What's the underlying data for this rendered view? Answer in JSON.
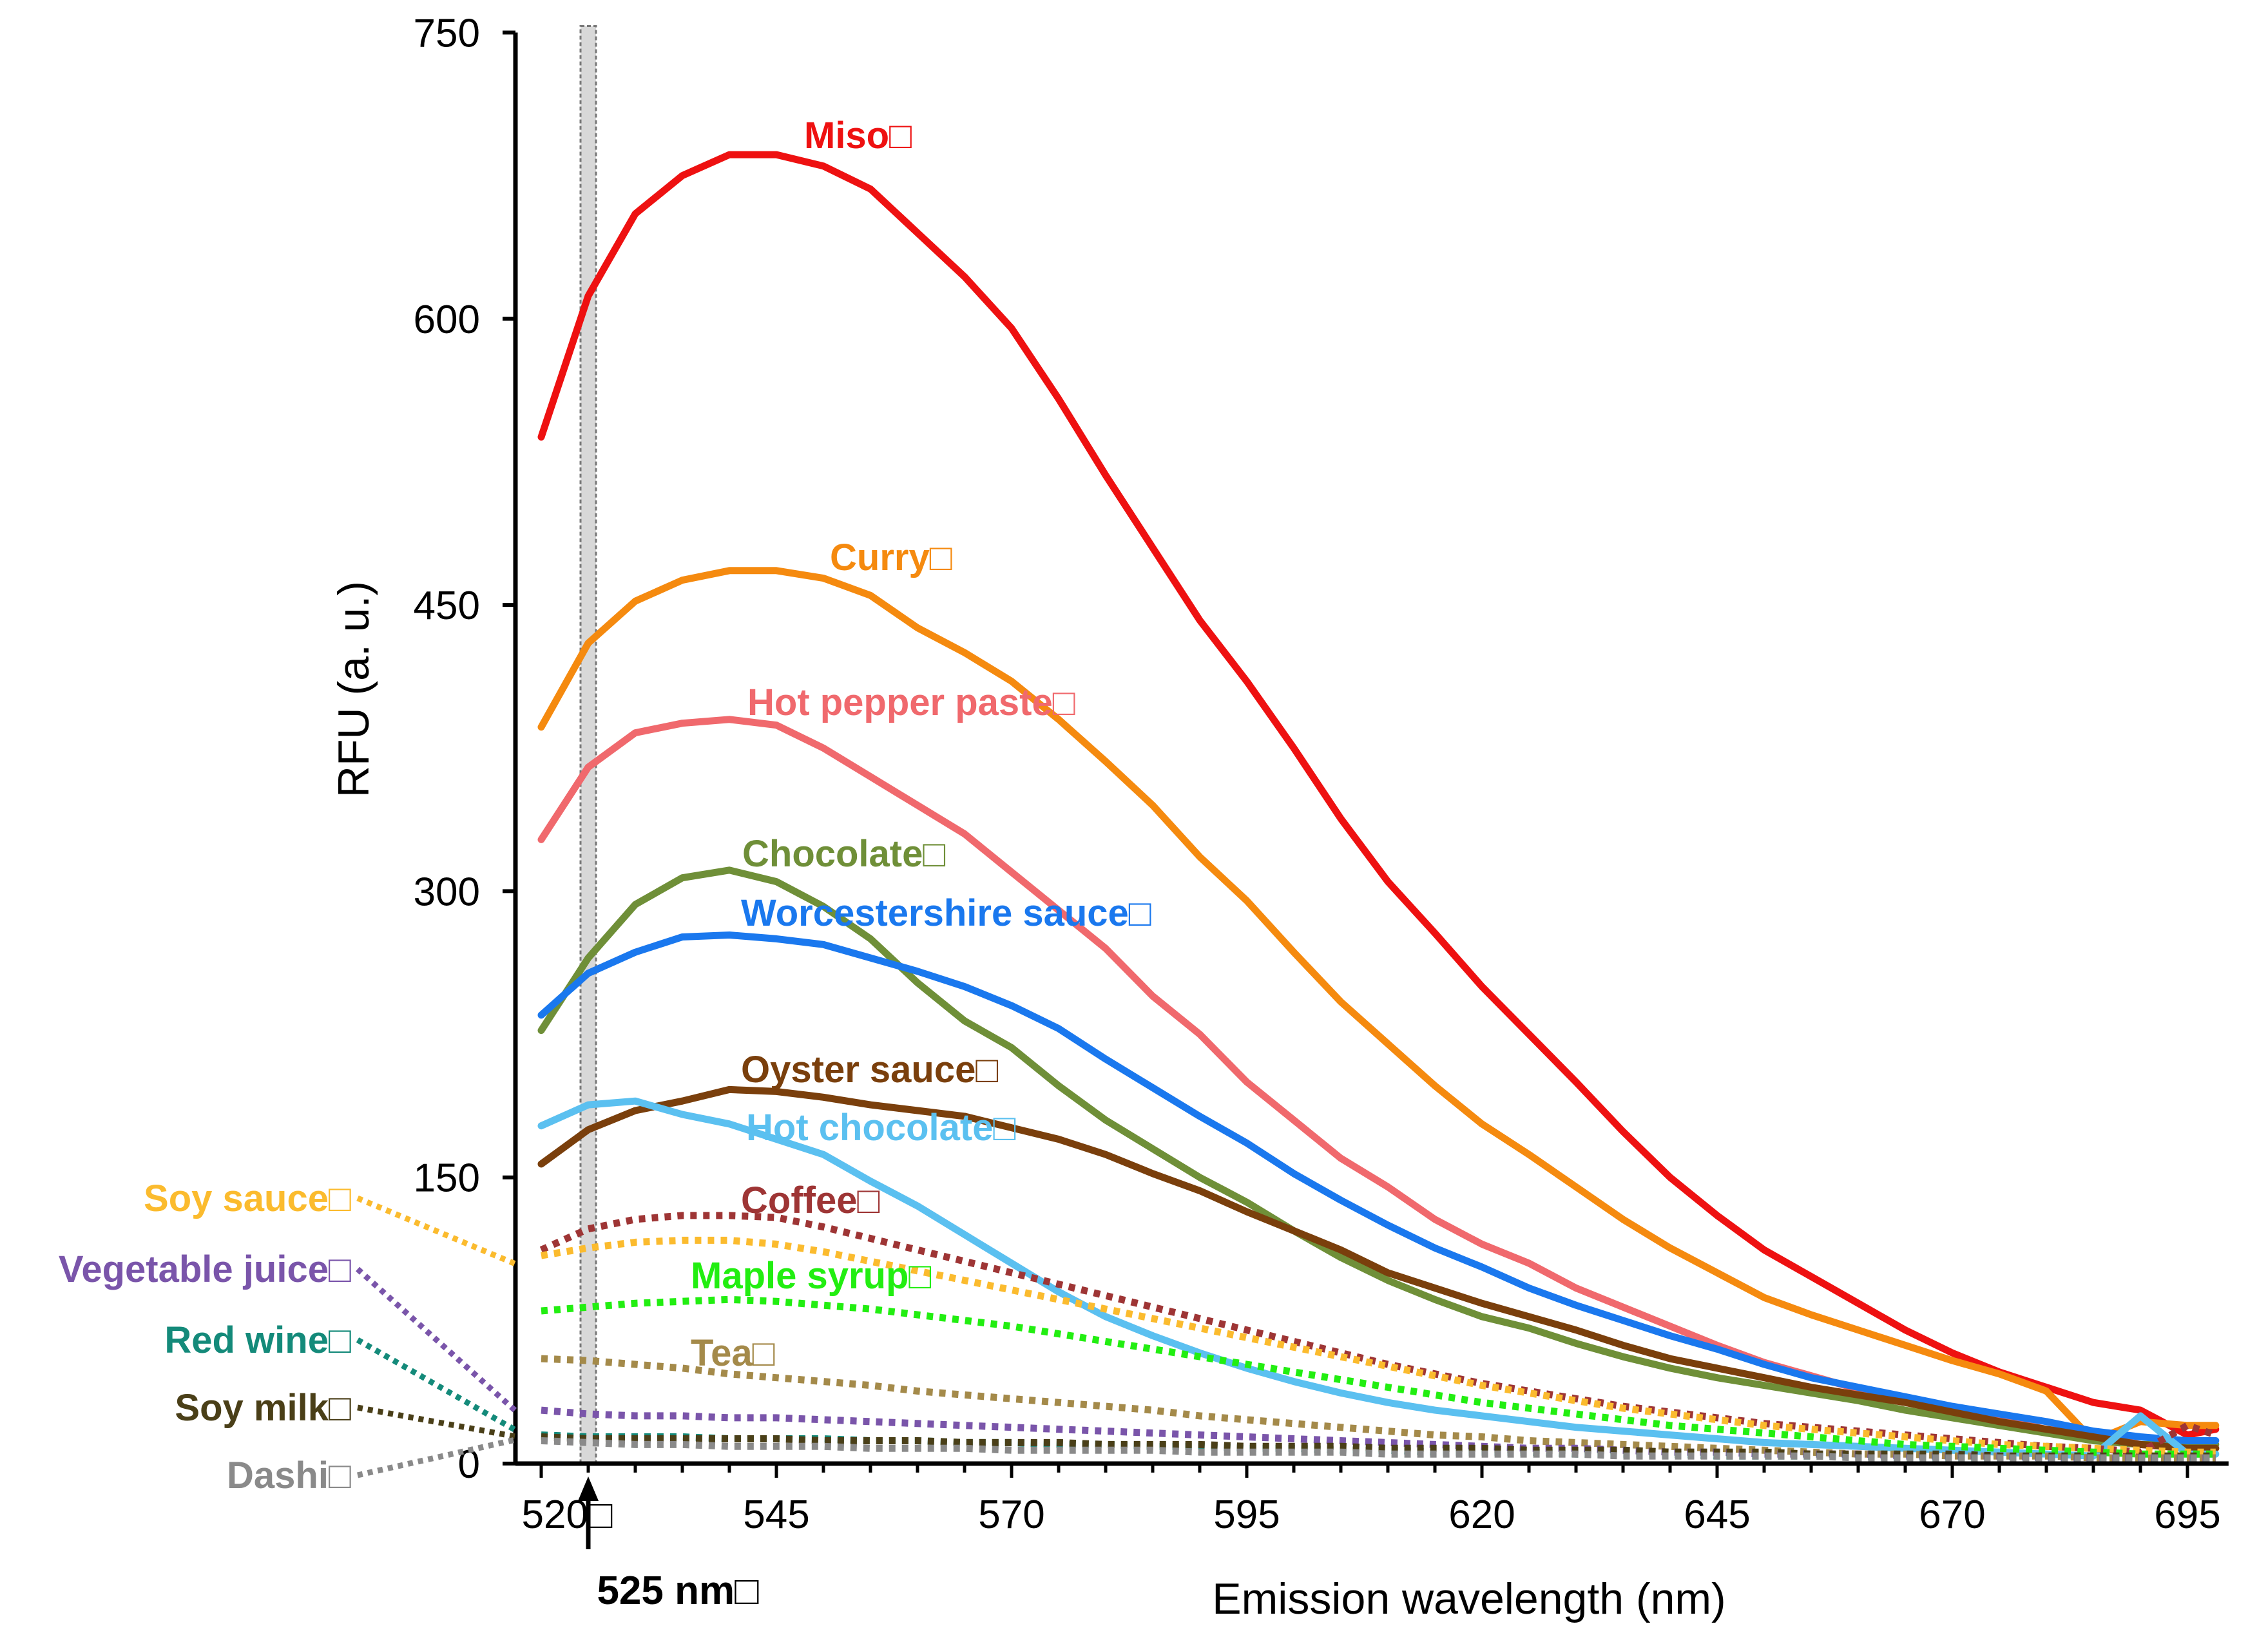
{
  "chart_data": {
    "type": "line",
    "title": "",
    "xlabel": "Emission wavelength (nm)",
    "ylabel": "RFU (a. u.)",
    "xlim": [
      520,
      698
    ],
    "ylim": [
      0,
      750
    ],
    "x_ticks": [
      520,
      545,
      570,
      595,
      620,
      645,
      670,
      695
    ],
    "x_tick_labels": [
      "520□",
      "545",
      "570",
      "595",
      "620",
      "645",
      "670",
      "695"
    ],
    "y_ticks": [
      0,
      150,
      300,
      450,
      600,
      750
    ],
    "y_tick_labels": [
      "0",
      "150",
      "300",
      "450",
      "600",
      "750"
    ],
    "excitation_marker": {
      "wavelength": 525,
      "label": "525 nm□"
    },
    "x": [
      520,
      525,
      530,
      535,
      540,
      545,
      550,
      555,
      560,
      565,
      570,
      575,
      580,
      585,
      590,
      595,
      600,
      605,
      610,
      615,
      620,
      625,
      630,
      635,
      640,
      645,
      650,
      655,
      660,
      665,
      670,
      675,
      680,
      685,
      690,
      695,
      698
    ],
    "series": [
      {
        "name": "Miso□",
        "color": "#ee1111",
        "style": "solid",
        "label_side": "inline",
        "values": [
          538,
          612,
          655,
          675,
          686,
          686,
          680,
          668,
          645,
          622,
          595,
          558,
          518,
          480,
          442,
          410,
          375,
          338,
          305,
          278,
          250,
          225,
          200,
          174,
          150,
          130,
          112,
          98,
          84,
          70,
          58,
          48,
          40,
          32,
          28,
          15,
          18
        ]
      },
      {
        "name": "Curry□",
        "color": "#f58a0f",
        "style": "solid",
        "label_side": "inline",
        "values": [
          386,
          430,
          452,
          463,
          468,
          468,
          464,
          455,
          438,
          425,
          410,
          390,
          368,
          345,
          318,
          295,
          268,
          242,
          220,
          198,
          178,
          162,
          145,
          128,
          113,
          100,
          87,
          78,
          70,
          62,
          54,
          47,
          38,
          12,
          22,
          20,
          20
        ]
      },
      {
        "name": "Hot pepper paste□",
        "color": "#f0696d",
        "style": "solid",
        "label_side": "inline",
        "values": [
          327,
          365,
          383,
          388,
          390,
          387,
          375,
          360,
          345,
          330,
          310,
          290,
          270,
          245,
          225,
          200,
          180,
          160,
          145,
          128,
          115,
          105,
          92,
          82,
          72,
          62,
          53,
          46,
          39,
          33,
          28,
          23,
          18,
          15,
          10,
          8,
          8
        ]
      },
      {
        "name": "Chocolate□",
        "color": "#6f8f38",
        "style": "solid",
        "label_side": "inline",
        "values": [
          227,
          265,
          293,
          307,
          311,
          305,
          292,
          275,
          252,
          232,
          218,
          198,
          180,
          165,
          150,
          137,
          122,
          108,
          96,
          86,
          77,
          71,
          63,
          56,
          50,
          45,
          41,
          37,
          33,
          28,
          24,
          20,
          16,
          12,
          10,
          10,
          10
        ]
      },
      {
        "name": "Worcestershire sauce□",
        "color": "#1a78ee",
        "style": "solid",
        "label_side": "inline",
        "values": [
          235,
          257,
          268,
          276,
          277,
          275,
          272,
          265,
          258,
          250,
          240,
          228,
          212,
          197,
          182,
          168,
          152,
          138,
          125,
          113,
          103,
          92,
          83,
          75,
          67,
          60,
          52,
          45,
          40,
          35,
          30,
          26,
          22,
          17,
          14,
          12,
          12
        ]
      },
      {
        "name": "Oyster sauce□",
        "color": "#7a3f0c",
        "style": "solid",
        "label_side": "inline",
        "values": [
          157,
          175,
          185,
          190,
          196,
          195,
          192,
          188,
          185,
          182,
          176,
          170,
          162,
          152,
          143,
          132,
          122,
          112,
          100,
          92,
          84,
          77,
          70,
          62,
          55,
          50,
          45,
          40,
          36,
          32,
          27,
          22,
          18,
          14,
          10,
          8,
          8
        ]
      },
      {
        "name": "Hot chocolate□",
        "color": "#5bc0f0",
        "style": "solid",
        "label_side": "inline",
        "values": [
          177,
          188,
          190,
          183,
          178,
          170,
          162,
          148,
          135,
          120,
          105,
          90,
          77,
          67,
          58,
          50,
          43,
          37,
          32,
          28,
          25,
          22,
          19,
          17,
          15,
          13,
          11,
          10,
          9,
          8,
          7,
          6,
          5,
          4,
          25,
          5,
          5
        ]
      },
      {
        "name": "Coffee□",
        "color": "#9e3535",
        "style": "dot",
        "label_side": "inline",
        "values": [
          112,
          123,
          128,
          130,
          130,
          129,
          124,
          118,
          112,
          106,
          100,
          94,
          88,
          82,
          76,
          70,
          64,
          58,
          52,
          47,
          42,
          38,
          34,
          30,
          27,
          24,
          21,
          19,
          17,
          15,
          13,
          11,
          9,
          8,
          6,
          20,
          15
        ]
      },
      {
        "name": "Soy sauce□",
        "color": "#fbbb2e",
        "style": "dot",
        "label_side": "left",
        "values": [
          109,
          113,
          116,
          117,
          117,
          115,
          111,
          106,
          101,
          96,
          91,
          86,
          81,
          76,
          71,
          66,
          61,
          56,
          51,
          46,
          41,
          37,
          33,
          29,
          26,
          23,
          20,
          18,
          16,
          14,
          12,
          10,
          9,
          8,
          7,
          6,
          6
        ]
      },
      {
        "name": "Maple syrup□",
        "color": "#22ee11",
        "style": "dot",
        "label_side": "inline",
        "values": [
          80,
          82,
          84,
          85,
          86,
          85,
          83,
          81,
          78,
          75,
          72,
          68,
          64,
          60,
          56,
          52,
          48,
          44,
          40,
          36,
          32,
          29,
          26,
          23,
          20,
          18,
          16,
          14,
          12,
          10,
          9,
          8,
          7,
          6,
          5,
          5,
          5
        ]
      },
      {
        "name": "Tea□",
        "color": "#a48a4a",
        "style": "dot",
        "label_side": "inline",
        "values": [
          55,
          54,
          52,
          50,
          47,
          45,
          43,
          41,
          38,
          36,
          34,
          32,
          30,
          28,
          25,
          23,
          21,
          19,
          17,
          15,
          14,
          12,
          11,
          10,
          9,
          8,
          7,
          6,
          5,
          5,
          4,
          4,
          4,
          3,
          3,
          3,
          3
        ]
      },
      {
        "name": "Vegetable juice□",
        "color": "#7a55aa",
        "style": "dot",
        "label_side": "left",
        "values": [
          28,
          26,
          25,
          25,
          24,
          24,
          23,
          22,
          21,
          20,
          19,
          18,
          17,
          16,
          15,
          14,
          13,
          12,
          11,
          10,
          9,
          8,
          8,
          7,
          6,
          6,
          5,
          5,
          5,
          4,
          4,
          4,
          3,
          3,
          3,
          3,
          3
        ]
      },
      {
        "name": "Red wine□",
        "color": "#148a7a",
        "style": "dot",
        "label_side": "left",
        "values": [
          15,
          14,
          14,
          14,
          13,
          13,
          13,
          12,
          12,
          11,
          11,
          10,
          10,
          9,
          9,
          8,
          8,
          7,
          7,
          6,
          6,
          6,
          5,
          5,
          5,
          4,
          4,
          4,
          4,
          3,
          3,
          3,
          3,
          3,
          2,
          2,
          2
        ]
      },
      {
        "name": "Soy milk□",
        "color": "#4a3f18",
        "style": "dot",
        "label_side": "left",
        "values": [
          14,
          13,
          13,
          13,
          13,
          13,
          12,
          12,
          12,
          11,
          11,
          11,
          10,
          10,
          10,
          9,
          9,
          9,
          8,
          8,
          8,
          7,
          7,
          7,
          6,
          6,
          6,
          5,
          5,
          5,
          5,
          4,
          4,
          4,
          4,
          4,
          4
        ]
      },
      {
        "name": "Dashi□",
        "color": "#8a8a8a",
        "style": "dot",
        "label_side": "left",
        "values": [
          12,
          11,
          10,
          10,
          9,
          9,
          9,
          8,
          8,
          8,
          7,
          7,
          7,
          7,
          6,
          6,
          6,
          6,
          5,
          5,
          5,
          5,
          5,
          4,
          4,
          4,
          4,
          4,
          3,
          3,
          3,
          3,
          3,
          3,
          3,
          3,
          3
        ]
      }
    ]
  }
}
